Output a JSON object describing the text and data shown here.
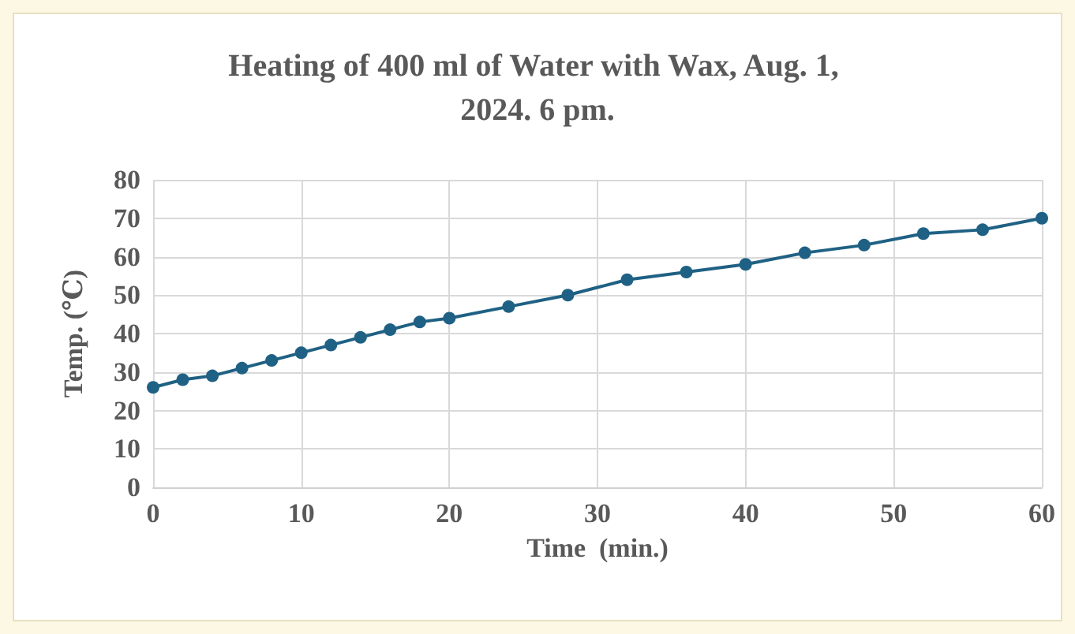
{
  "chart_data": {
    "type": "line",
    "title": "Heating of 400 ml of Water with Wax, Aug. 1, 2024. 6 pm.",
    "xlabel": "Time  (min.)",
    "ylabel": "Temp. (℃)",
    "x": [
      0,
      2,
      4,
      6,
      8,
      10,
      12,
      14,
      16,
      18,
      20,
      24,
      28,
      32,
      36,
      40,
      44,
      48,
      52,
      56,
      60
    ],
    "series": [
      {
        "color": "#1f6184",
        "values": [
          26,
          28,
          29,
          31,
          33,
          35,
          37,
          39,
          41,
          43,
          44,
          47,
          50,
          54,
          56,
          58,
          61,
          63,
          66,
          67,
          70
        ]
      }
    ],
    "xlim": [
      0,
      60
    ],
    "xticks": [
      0,
      10,
      20,
      30,
      40,
      50,
      60
    ],
    "ylim": [
      0,
      80
    ],
    "yticks": [
      0,
      10,
      20,
      30,
      40,
      50,
      60,
      70,
      80
    ],
    "grid": true,
    "marker": "circle",
    "line_style": "solid"
  }
}
